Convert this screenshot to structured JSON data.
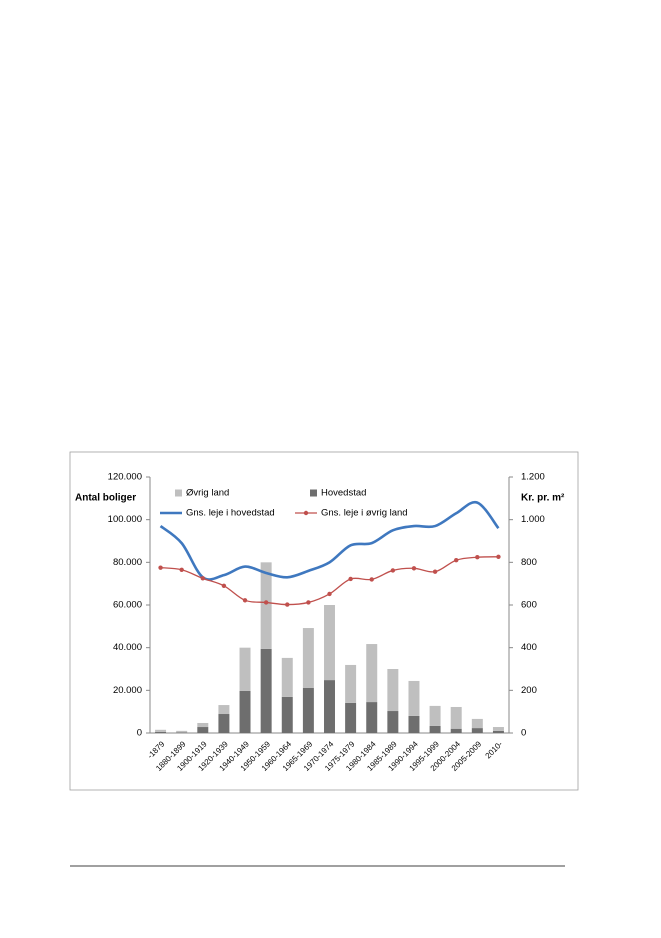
{
  "chart_data": {
    "type": "bar",
    "stacked": true,
    "ylabel": "Antal boliger",
    "y2label": "Kr. pr. m²",
    "categories": [
      "-1879",
      "1880-1899",
      "1900-1919",
      "1920-1939",
      "1940-1949",
      "1950-1959",
      "1960-1964",
      "1965-1969",
      "1970-1974",
      "1975-1979",
      "1980-1984",
      "1985-1989",
      "1990-1994",
      "1995-1999",
      "2000-2004",
      "2005-2009",
      "2010-"
    ],
    "series": [
      {
        "name": "Hovedstad",
        "type": "bar",
        "color": "#6e6e6e",
        "values": [
          500,
          300,
          2800,
          8900,
          19700,
          39400,
          16900,
          21100,
          24800,
          14100,
          14500,
          10300,
          8000,
          3300,
          2000,
          2300,
          1000
        ]
      },
      {
        "name": "Øvrig land",
        "type": "bar",
        "color": "#bfbfbf",
        "values": [
          1000,
          700,
          1900,
          4200,
          20300,
          40600,
          18300,
          28100,
          35200,
          17800,
          27200,
          19700,
          16400,
          9400,
          10200,
          4300,
          1800
        ]
      },
      {
        "name": "Gns. leje i hovedstad",
        "type": "line",
        "axis": "y2",
        "color": "#3f78bf",
        "values": [
          970,
          890,
          730,
          740,
          780,
          750,
          730,
          760,
          800,
          880,
          890,
          950,
          970,
          970,
          1030,
          1080,
          960
        ]
      },
      {
        "name": "Gns. leje i øvrig land",
        "type": "line",
        "axis": "y2",
        "color": "#c0504d",
        "markers": true,
        "values": [
          775,
          765,
          725,
          690,
          622,
          612,
          602,
          612,
          652,
          722,
          720,
          762,
          772,
          756,
          810,
          824,
          826
        ]
      }
    ],
    "ylim": [
      0,
      120000
    ],
    "yticks": [
      0,
      {
        "value": 20000,
        "label": "20.000"
      },
      {
        "value": 40000,
        "label": "40.000"
      },
      {
        "value": 60000,
        "label": "60.000"
      },
      {
        "value": 80000,
        "label": "80.000"
      },
      {
        "value": 100000,
        "label": "100.000"
      },
      {
        "value": 120000,
        "label": "120.000"
      }
    ],
    "y2lim": [
      0,
      1200
    ],
    "y2ticks": [
      0,
      200,
      400,
      600,
      800,
      {
        "value": 1000,
        "label": "1.000"
      },
      {
        "value": 1200,
        "label": "1.200"
      }
    ],
    "grid": false
  }
}
